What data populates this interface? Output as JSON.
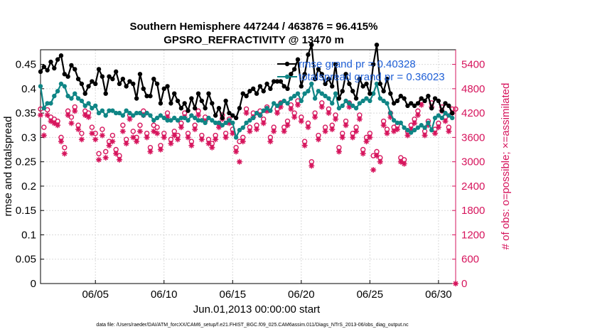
{
  "chart_data": {
    "type": "line",
    "title_line1": "Southern Hemisphere 447244 / 463876 = 96.415%",
    "title_line2": "GPSRO_REFRACTIVITY @ 13470 m",
    "xlabel": "Jun.01,2013 00:00:00 start",
    "ylabel_left": "rmse and totalspread",
    "ylabel_right": "# of obs: o=possible; ×=assimilated",
    "footer": "data file: /Users/raeder/DAI/ATM_forcXX/CAM6_setup/f.e21.FHIST_BGC.f09_025.CAM6assim.011/Diags_NTrS_2013-06/obs_diag_output.nc",
    "x_range": [
      1.0,
      31.25
    ],
    "x_ticks": [
      5,
      10,
      15,
      20,
      25,
      30
    ],
    "x_tick_labels": [
      "06/05",
      "06/10",
      "06/15",
      "06/20",
      "06/25",
      "06/30"
    ],
    "ylim_left": [
      0,
      0.48
    ],
    "yticks_left": [
      0,
      0.05,
      0.1,
      0.15,
      0.2,
      0.25,
      0.3,
      0.35,
      0.4,
      0.45
    ],
    "ytick_labels_left": [
      "0",
      "0.05",
      "0.1",
      "0.15",
      "0.2",
      "0.25",
      "0.3",
      "0.35",
      "0.4",
      "0.45"
    ],
    "ylim_right": [
      0,
      5760
    ],
    "yticks_right": [
      0,
      600,
      1200,
      1800,
      2400,
      3000,
      3600,
      4200,
      4800,
      5400
    ],
    "ytick_labels_right": [
      "0",
      "600",
      "1200",
      "1800",
      "2400",
      "3000",
      "3600",
      "4200",
      "4800",
      "5400"
    ],
    "legend": [
      {
        "name": "rmse grand pr = 0.40328",
        "color": "#000000"
      },
      {
        "name": "totalspread grand pr = 0.36023",
        "color": "#0f8585"
      }
    ],
    "series": [
      {
        "name": "rmse",
        "color": "#000000",
        "axis": "left",
        "x": [
          1.0,
          1.25,
          1.5,
          1.75,
          2.0,
          2.25,
          2.5,
          2.75,
          3.0,
          3.25,
          3.5,
          3.75,
          4.0,
          4.25,
          4.5,
          4.75,
          5.0,
          5.25,
          5.5,
          5.75,
          6.0,
          6.25,
          6.5,
          6.75,
          7.0,
          7.25,
          7.5,
          7.75,
          8.0,
          8.25,
          8.5,
          8.75,
          9.0,
          9.25,
          9.5,
          9.75,
          10.0,
          10.25,
          10.5,
          10.75,
          11.0,
          11.25,
          11.5,
          11.75,
          12.0,
          12.25,
          12.5,
          12.75,
          13.0,
          13.25,
          13.5,
          13.75,
          14.0,
          14.25,
          14.5,
          14.75,
          15.0,
          15.25,
          15.5,
          15.75,
          16.0,
          16.25,
          16.5,
          16.75,
          17.0,
          17.25,
          17.5,
          17.75,
          18.0,
          18.25,
          18.5,
          18.75,
          19.0,
          19.25,
          19.5,
          19.75,
          20.0,
          20.25,
          20.5,
          20.75,
          21.0,
          21.25,
          21.5,
          21.75,
          22.0,
          22.25,
          22.5,
          22.75,
          23.0,
          23.25,
          23.5,
          23.75,
          24.0,
          24.25,
          24.5,
          24.75,
          25.0,
          25.25,
          25.5,
          25.75,
          26.0,
          26.25,
          26.5,
          26.75,
          27.0,
          27.25,
          27.5,
          27.75,
          28.0,
          28.25,
          28.5,
          28.75,
          29.0,
          29.25,
          29.5,
          29.75,
          30.0,
          30.25,
          30.5,
          30.75,
          31.0
        ],
        "values": [
          0.435,
          0.445,
          0.438,
          0.455,
          0.442,
          0.46,
          0.468,
          0.43,
          0.425,
          0.448,
          0.44,
          0.42,
          0.41,
          0.39,
          0.405,
          0.415,
          0.41,
          0.44,
          0.425,
          0.39,
          0.425,
          0.42,
          0.435,
          0.41,
          0.42,
          0.405,
          0.415,
          0.41,
          0.38,
          0.43,
          0.4,
          0.385,
          0.385,
          0.42,
          0.41,
          0.37,
          0.4,
          0.405,
          0.37,
          0.39,
          0.375,
          0.36,
          0.37,
          0.355,
          0.38,
          0.36,
          0.39,
          0.375,
          0.36,
          0.39,
          0.37,
          0.345,
          0.36,
          0.34,
          0.375,
          0.35,
          0.345,
          0.34,
          0.36,
          0.39,
          0.385,
          0.395,
          0.4,
          0.39,
          0.405,
          0.395,
          0.41,
          0.4,
          0.415,
          0.415,
          0.415,
          0.405,
          0.4,
          0.43,
          0.44,
          0.46,
          0.405,
          0.43,
          0.47,
          0.49,
          0.42,
          0.44,
          0.43,
          0.41,
          0.42,
          0.405,
          0.45,
          0.38,
          0.395,
          0.43,
          0.41,
          0.395,
          0.38,
          0.42,
          0.405,
          0.41,
          0.39,
          0.45,
          0.49,
          0.41,
          0.395,
          0.42,
          0.39,
          0.37,
          0.375,
          0.385,
          0.38,
          0.365,
          0.37,
          0.365,
          0.37,
          0.38,
          0.375,
          0.385,
          0.36,
          0.38,
          0.375,
          0.355,
          0.37,
          0.365,
          0.35
        ]
      },
      {
        "name": "totalspread",
        "color": "#0f8585",
        "axis": "left",
        "x": [
          1.0,
          1.25,
          1.5,
          1.75,
          2.0,
          2.25,
          2.5,
          2.75,
          3.0,
          3.25,
          3.5,
          3.75,
          4.0,
          4.25,
          4.5,
          4.75,
          5.0,
          5.25,
          5.5,
          5.75,
          6.0,
          6.25,
          6.5,
          6.75,
          7.0,
          7.25,
          7.5,
          7.75,
          8.0,
          8.25,
          8.5,
          8.75,
          9.0,
          9.25,
          9.5,
          9.75,
          10.0,
          10.25,
          10.5,
          10.75,
          11.0,
          11.25,
          11.5,
          11.75,
          12.0,
          12.25,
          12.5,
          12.75,
          13.0,
          13.25,
          13.5,
          13.75,
          14.0,
          14.25,
          14.5,
          14.75,
          15.0,
          15.25,
          15.5,
          15.75,
          16.0,
          16.25,
          16.5,
          16.75,
          17.0,
          17.25,
          17.5,
          17.75,
          18.0,
          18.25,
          18.5,
          18.75,
          19.0,
          19.25,
          19.5,
          19.75,
          20.0,
          20.25,
          20.5,
          20.75,
          21.0,
          21.25,
          21.5,
          21.75,
          22.0,
          22.25,
          22.5,
          22.75,
          23.0,
          23.25,
          23.5,
          23.75,
          24.0,
          24.25,
          24.5,
          24.75,
          25.0,
          25.25,
          25.5,
          25.75,
          26.0,
          26.25,
          26.5,
          26.75,
          27.0,
          27.25,
          27.5,
          27.75,
          28.0,
          28.25,
          28.5,
          28.75,
          29.0,
          29.25,
          29.5,
          29.75,
          30.0,
          30.25,
          30.5,
          30.75,
          31.0
        ],
        "values": [
          0.405,
          0.36,
          0.37,
          0.37,
          0.385,
          0.395,
          0.41,
          0.405,
          0.385,
          0.38,
          0.39,
          0.38,
          0.375,
          0.365,
          0.37,
          0.36,
          0.365,
          0.35,
          0.355,
          0.345,
          0.355,
          0.355,
          0.35,
          0.35,
          0.345,
          0.355,
          0.35,
          0.345,
          0.35,
          0.35,
          0.345,
          0.35,
          0.345,
          0.335,
          0.34,
          0.345,
          0.34,
          0.335,
          0.335,
          0.34,
          0.335,
          0.34,
          0.34,
          0.335,
          0.345,
          0.34,
          0.335,
          0.335,
          0.33,
          0.34,
          0.335,
          0.33,
          0.33,
          0.325,
          0.33,
          0.335,
          0.33,
          0.3,
          0.315,
          0.32,
          0.33,
          0.335,
          0.34,
          0.35,
          0.345,
          0.355,
          0.36,
          0.355,
          0.37,
          0.365,
          0.37,
          0.375,
          0.37,
          0.38,
          0.385,
          0.39,
          0.375,
          0.39,
          0.395,
          0.41,
          0.38,
          0.395,
          0.39,
          0.385,
          0.38,
          0.37,
          0.39,
          0.36,
          0.365,
          0.375,
          0.37,
          0.365,
          0.36,
          0.37,
          0.375,
          0.38,
          0.375,
          0.39,
          0.41,
          0.38,
          0.375,
          0.37,
          0.35,
          0.335,
          0.33,
          0.33,
          0.32,
          0.315,
          0.31,
          0.315,
          0.32,
          0.325,
          0.32,
          0.33,
          0.315,
          0.34,
          0.345,
          0.34,
          0.35,
          0.345,
          0.34
        ]
      },
      {
        "name": "obs possible",
        "color": "#d6145c",
        "axis": "right",
        "marker": "circle",
        "x": [
          1.0,
          1.25,
          1.5,
          1.75,
          2.0,
          2.25,
          2.5,
          2.75,
          3.0,
          3.25,
          3.5,
          3.75,
          4.0,
          4.25,
          4.5,
          4.75,
          5.0,
          5.25,
          5.5,
          5.75,
          6.0,
          6.25,
          6.5,
          6.75,
          7.0,
          7.25,
          7.5,
          7.75,
          8.0,
          8.25,
          8.5,
          8.75,
          9.0,
          9.25,
          9.5,
          9.75,
          10.0,
          10.25,
          10.5,
          10.75,
          11.0,
          11.25,
          11.5,
          11.75,
          12.0,
          12.25,
          12.5,
          12.75,
          13.0,
          13.25,
          13.5,
          13.75,
          14.0,
          14.25,
          14.5,
          14.75,
          15.0,
          15.25,
          15.5,
          15.75,
          16.0,
          16.25,
          16.5,
          16.75,
          17.0,
          17.25,
          17.5,
          17.75,
          18.0,
          18.25,
          18.5,
          18.75,
          19.0,
          19.25,
          19.5,
          19.75,
          20.0,
          20.25,
          20.5,
          20.75,
          21.0,
          21.25,
          21.5,
          21.75,
          22.0,
          22.25,
          22.5,
          22.75,
          23.0,
          23.25,
          23.5,
          23.75,
          24.0,
          24.25,
          24.5,
          24.75,
          25.0,
          25.25,
          25.5,
          25.75,
          26.0,
          26.25,
          26.5,
          26.75,
          27.0,
          27.25,
          27.5,
          27.75,
          28.0,
          28.25,
          28.5,
          28.75,
          29.0,
          29.25,
          29.5,
          29.75,
          30.0,
          30.25,
          30.5,
          30.75,
          31.0,
          31.25
        ],
        "values": [
          4300,
          3850,
          4280,
          4100,
          4050,
          4000,
          3600,
          3350,
          4250,
          4100,
          4350,
          3900,
          3700,
          4250,
          4200,
          3850,
          3700,
          3200,
          3800,
          3250,
          3500,
          3650,
          3300,
          3150,
          3900,
          3550,
          4150,
          3750,
          3600,
          3900,
          4250,
          3700,
          3350,
          3900,
          3850,
          3400,
          3700,
          4200,
          3550,
          3750,
          3650,
          3950,
          4200,
          3700,
          3500,
          3900,
          4250,
          3650,
          4100,
          3550,
          3450,
          3650,
          3950,
          4150,
          3700,
          4050,
          3800,
          3350,
          3500,
          3600,
          4300,
          3850,
          4200,
          3900,
          4250,
          4050,
          4350,
          3600,
          3850,
          4300,
          4450,
          3850,
          4000,
          4400,
          4200,
          4500,
          4100,
          3500,
          3950,
          3000,
          4200,
          3650,
          4450,
          3850,
          4300,
          3900,
          4150,
          3350,
          3700,
          4000,
          4450,
          3700,
          3850,
          4150,
          3300,
          3600,
          3700,
          3150,
          3250,
          3100,
          4000,
          3800,
          4200,
          3850,
          3900,
          3100,
          3050,
          3750,
          3900,
          4050,
          4250,
          4500,
          3750,
          4000,
          4450,
          3800,
          3950,
          4350,
          4100,
          3850,
          4300,
          4300
        ]
      },
      {
        "name": "obs assimilated",
        "color": "#d6145c",
        "axis": "right",
        "marker": "asterisk",
        "x": [
          1.0,
          1.25,
          1.5,
          1.75,
          2.0,
          2.25,
          2.5,
          2.75,
          3.0,
          3.25,
          3.5,
          3.75,
          4.0,
          4.25,
          4.5,
          4.75,
          5.0,
          5.25,
          5.5,
          5.75,
          6.0,
          6.25,
          6.5,
          6.75,
          7.0,
          7.25,
          7.5,
          7.75,
          8.0,
          8.25,
          8.5,
          8.75,
          9.0,
          9.25,
          9.5,
          9.75,
          10.0,
          10.25,
          10.5,
          10.75,
          11.0,
          11.25,
          11.5,
          11.75,
          12.0,
          12.25,
          12.5,
          12.75,
          13.0,
          13.25,
          13.5,
          13.75,
          14.0,
          14.25,
          14.5,
          14.75,
          15.0,
          15.25,
          15.5,
          15.75,
          16.0,
          16.25,
          16.5,
          16.75,
          17.0,
          17.25,
          17.5,
          17.75,
          18.0,
          18.25,
          18.5,
          18.75,
          19.0,
          19.25,
          19.5,
          19.75,
          20.0,
          20.25,
          20.5,
          20.75,
          21.0,
          21.25,
          21.5,
          21.75,
          22.0,
          22.25,
          22.5,
          22.75,
          23.0,
          23.25,
          23.5,
          23.75,
          24.0,
          24.25,
          24.5,
          24.75,
          25.0,
          25.25,
          25.5,
          25.75,
          26.0,
          26.25,
          26.5,
          26.75,
          27.0,
          27.25,
          27.5,
          27.75,
          28.0,
          28.25,
          28.5,
          28.75,
          29.0,
          29.25,
          29.5,
          29.75,
          30.0,
          30.25,
          30.5,
          30.75,
          31.0,
          31.25
        ],
        "values": [
          4150,
          3650,
          4150,
          4000,
          3950,
          3900,
          3500,
          3200,
          4150,
          3950,
          4250,
          3800,
          3550,
          4150,
          4100,
          3700,
          3550,
          3050,
          3650,
          3100,
          3400,
          3500,
          3200,
          3050,
          3750,
          3450,
          4050,
          3600,
          3500,
          3750,
          4150,
          3600,
          3250,
          3750,
          3700,
          3300,
          3600,
          4100,
          3450,
          3650,
          3550,
          3850,
          4100,
          3600,
          3400,
          3800,
          4150,
          3550,
          4000,
          3450,
          3350,
          3550,
          3850,
          4050,
          3600,
          3950,
          3700,
          3250,
          3000,
          3500,
          4200,
          3750,
          4100,
          3800,
          4150,
          3950,
          4250,
          3500,
          3750,
          4200,
          4350,
          3750,
          3900,
          4300,
          4100,
          4400,
          4000,
          3400,
          3850,
          2900,
          4100,
          3550,
          4350,
          3750,
          4200,
          3800,
          4050,
          3250,
          3600,
          3900,
          4350,
          3600,
          3750,
          4050,
          3200,
          3500,
          3600,
          2800,
          3150,
          3000,
          3900,
          3700,
          4100,
          3750,
          3800,
          3000,
          2950,
          3650,
          3800,
          3950,
          4150,
          4400,
          3650,
          3900,
          4350,
          3700,
          3850,
          4250,
          4000,
          3750,
          4200,
          0
        ]
      }
    ]
  }
}
